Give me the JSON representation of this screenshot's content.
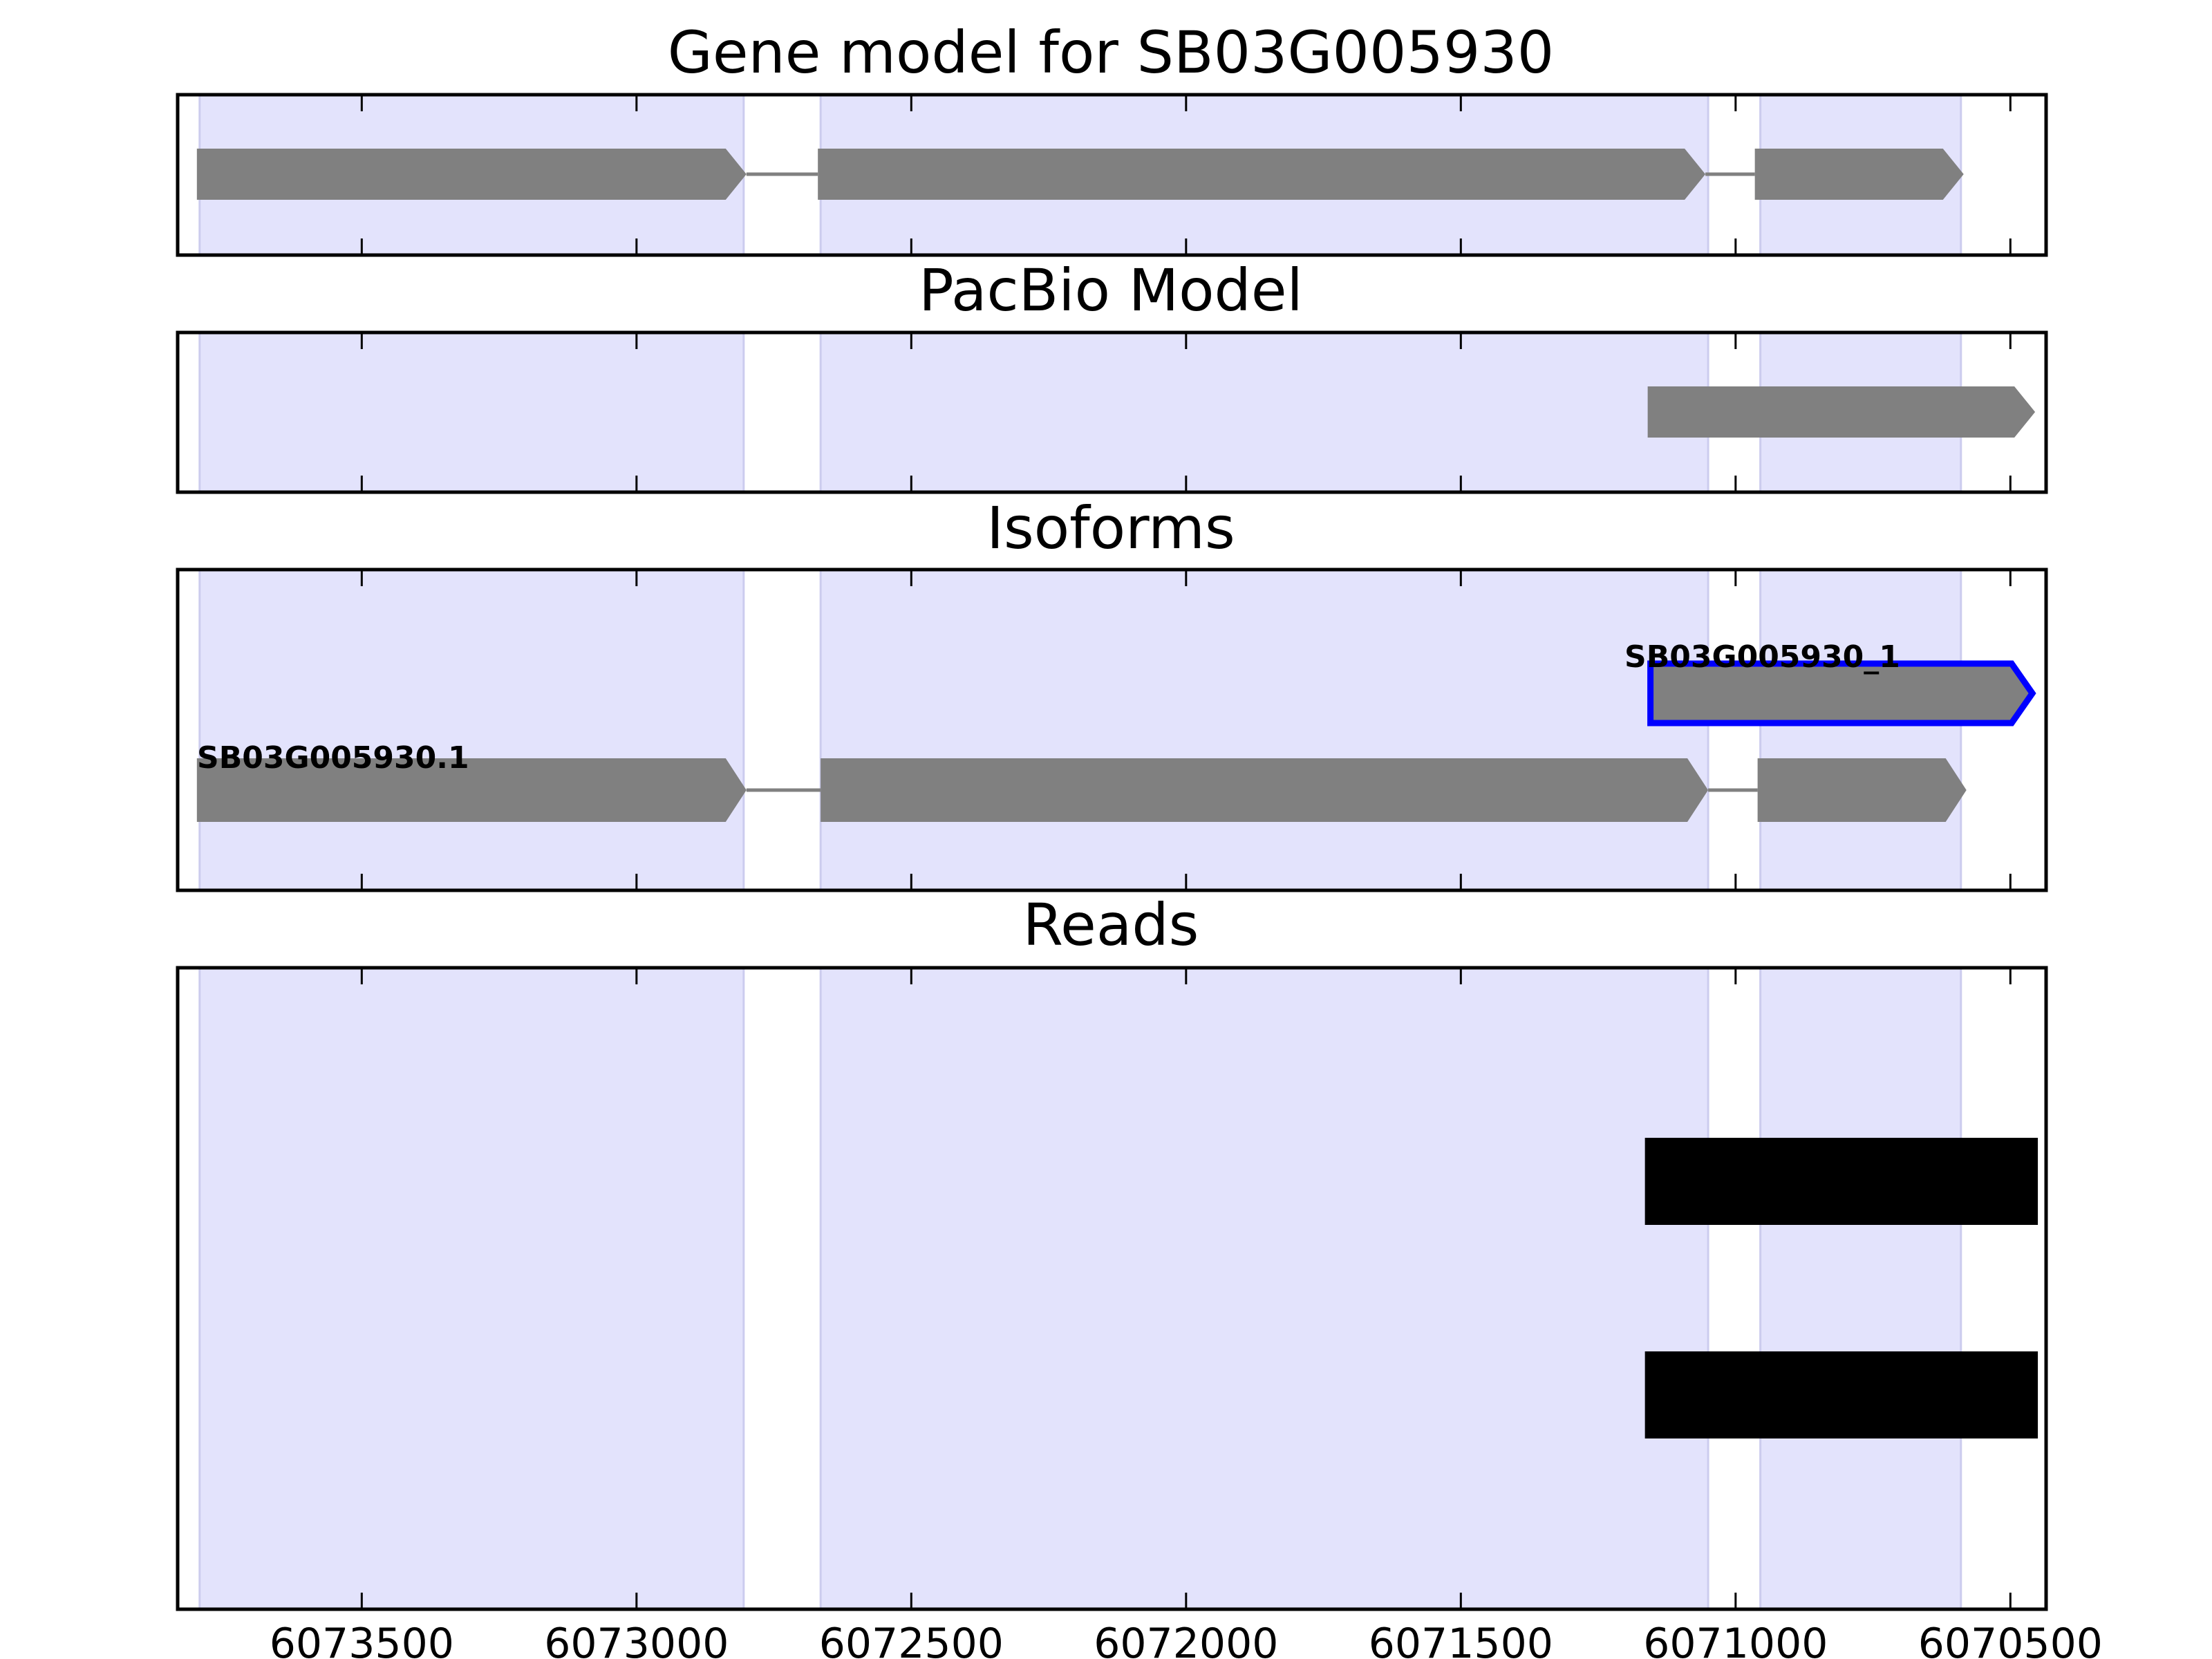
{
  "figure": {
    "background": "#ffffff"
  },
  "chart_data": {
    "type": "gene-track",
    "x_axis": {
      "reversed": true,
      "range": [
        6073835,
        6070435
      ],
      "ticks": [
        6073500,
        6073000,
        6072500,
        6072000,
        6071500,
        6071000,
        6070500
      ],
      "tick_labels": [
        "6073500",
        "6073000",
        "6072500",
        "6072000",
        "6071500",
        "6071000",
        "6070500"
      ]
    },
    "exon_shading": {
      "color": "#e3e3fc",
      "edge_color": "#ccccee",
      "regions": [
        [
          6073795,
          6072805
        ],
        [
          6072665,
          6071050
        ],
        [
          6070955,
          6070590
        ]
      ]
    },
    "panels": [
      {
        "title": "Gene model for SB03G005930",
        "features": [
          {
            "color": "#808080",
            "exons": [
              [
                6073800,
                6072800
              ],
              [
                6072670,
                6071055
              ],
              [
                6070965,
                6070585
              ]
            ]
          }
        ]
      },
      {
        "title": "PacBio Model",
        "features": [
          {
            "color": "#808080",
            "exons": [
              [
                6071160,
                6070455
              ]
            ]
          }
        ]
      },
      {
        "title": "Isoforms",
        "features": [
          {
            "label": "SB03G005930.1",
            "color": "#808080",
            "exons": [
              [
                6073800,
                6072800
              ],
              [
                6072665,
                6071050
              ],
              [
                6070960,
                6070580
              ]
            ]
          },
          {
            "label": "SB03G005930_1",
            "color": "#808080",
            "outline": "#0000ff",
            "exons": [
              [
                6071155,
                6070460
              ]
            ]
          }
        ]
      },
      {
        "title": "Reads",
        "features": [
          {
            "color": "#000000",
            "exons": [
              [
                6071165,
                6070450
              ]
            ]
          },
          {
            "color": "#000000",
            "exons": [
              [
                6071165,
                6070450
              ]
            ]
          }
        ]
      }
    ]
  }
}
